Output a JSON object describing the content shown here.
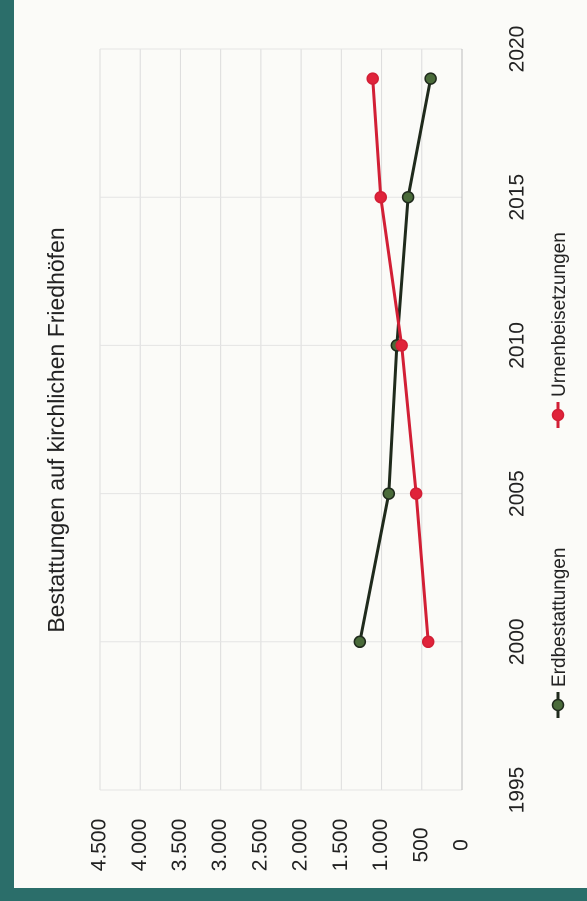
{
  "chart_data": {
    "type": "line",
    "title": "Bestattungen auf kirchlichen Friedhöfen",
    "x": [
      2000,
      2005,
      2010,
      2015,
      2019
    ],
    "series": [
      {
        "name": "Erdbestattungen",
        "color": "#1f2a1c",
        "marker_color": "#4a6b3a",
        "values": [
          1270,
          910,
          810,
          670,
          390
        ]
      },
      {
        "name": "Urnenbeisetzungen",
        "color": "#d21f35",
        "marker_color": "#e0233a",
        "values": [
          420,
          570,
          750,
          1010,
          1110
        ]
      }
    ],
    "xlim": [
      1995,
      2020
    ],
    "xticks": [
      1995,
      2000,
      2005,
      2010,
      2015,
      2020
    ],
    "ylim": [
      0,
      4500
    ],
    "yticks": [
      0,
      {
        "value": 500,
        "label": "500"
      },
      {
        "value": 1000,
        "label": "1.000"
      },
      {
        "value": 1500,
        "label": "1.500"
      },
      {
        "value": 2000,
        "label": "2.000"
      },
      {
        "value": 2500,
        "label": "2.500"
      },
      {
        "value": 3000,
        "label": "3.000"
      },
      {
        "value": 3500,
        "label": "3.500"
      },
      {
        "value": 4000,
        "label": "4.000"
      },
      {
        "value": 4500,
        "label": "4.500"
      }
    ],
    "grid": true,
    "legend": "bottom"
  }
}
